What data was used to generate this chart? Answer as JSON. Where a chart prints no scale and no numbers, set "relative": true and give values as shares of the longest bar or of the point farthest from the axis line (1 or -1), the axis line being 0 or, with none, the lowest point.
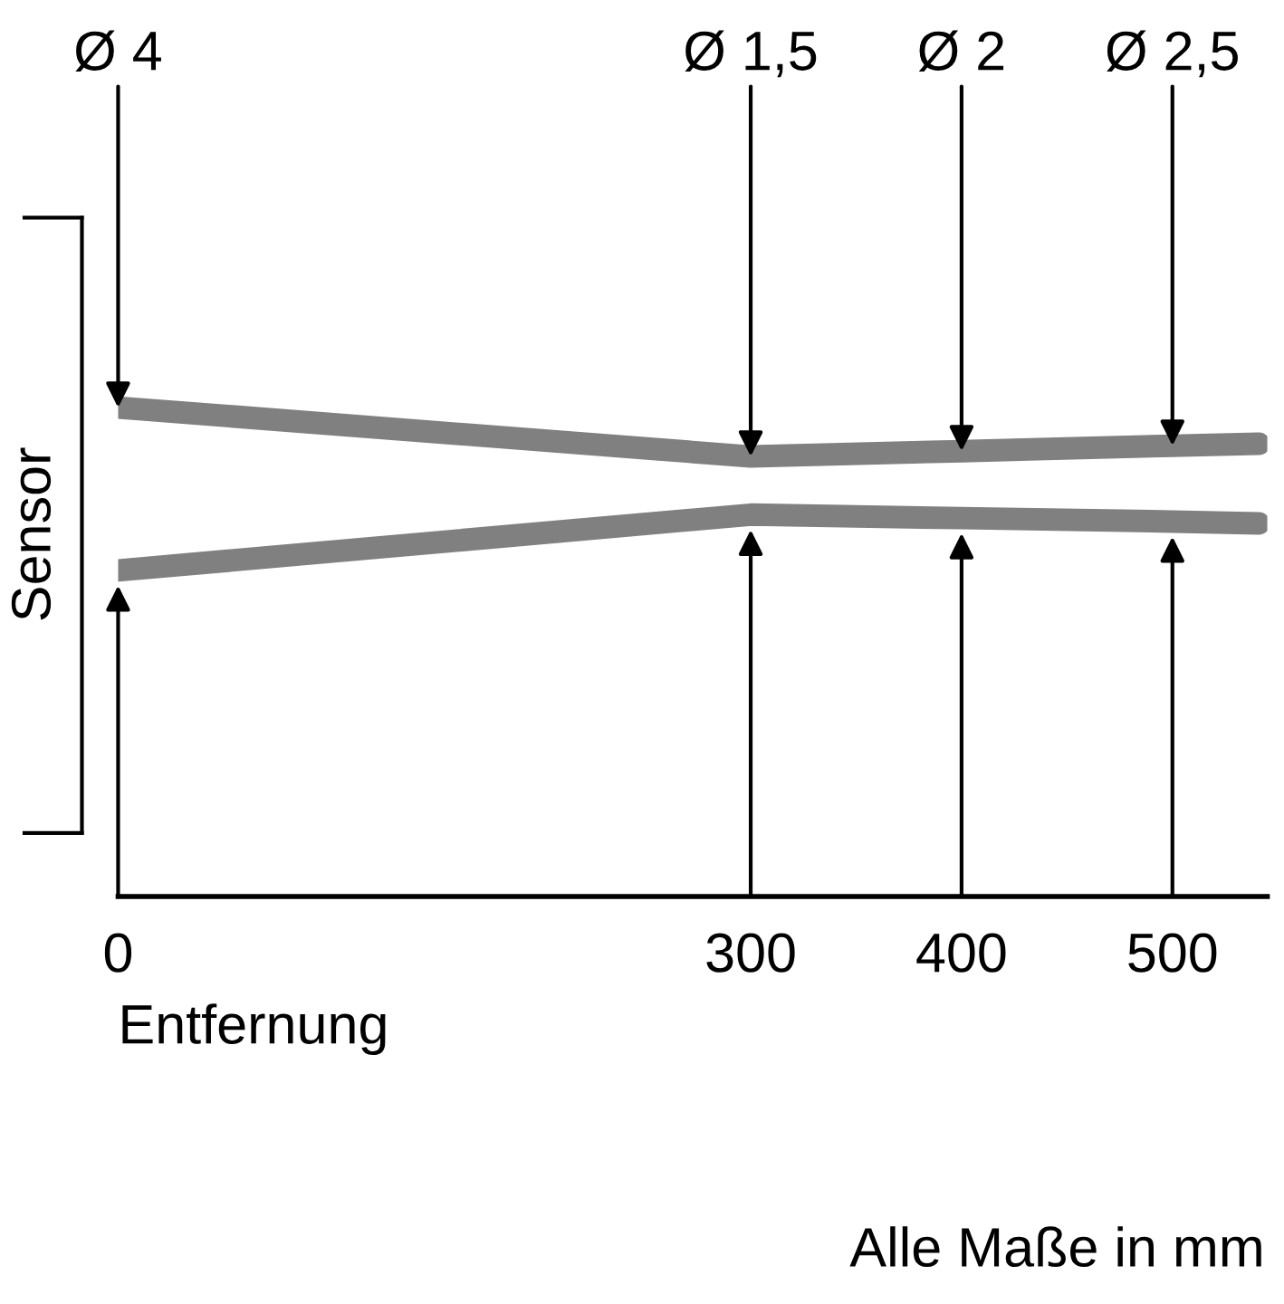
{
  "chart_data": {
    "type": "line",
    "relative": true,
    "xlabel": "Entfernung",
    "ylabel": "Sensor",
    "x": [
      0,
      300,
      400,
      500,
      541
    ],
    "xlim": [
      0,
      545
    ],
    "xticks": [
      0,
      300,
      400,
      500
    ],
    "series": [
      {
        "color": "#808080",
        "values": [
          1.0,
          0.9,
          0.911,
          0.922,
          0.926
        ]
      },
      {
        "color": "#808080",
        "values": [
          0.667,
          0.781,
          0.774,
          0.767,
          0.763
        ]
      }
    ],
    "annotations": [
      {
        "text": "Ø 4",
        "x": 0,
        "y": 1.0
      },
      {
        "text": "Ø 1,5",
        "x": 300,
        "y": 0.9
      },
      {
        "text": "Ø 2",
        "x": 400,
        "y": 0.911
      },
      {
        "text": "Ø 2,5",
        "x": 500,
        "y": 0.922
      },
      "Alle Maße in mm"
    ],
    "grid": false,
    "legend": false,
    "marker": "none",
    "line_style": "solid"
  }
}
